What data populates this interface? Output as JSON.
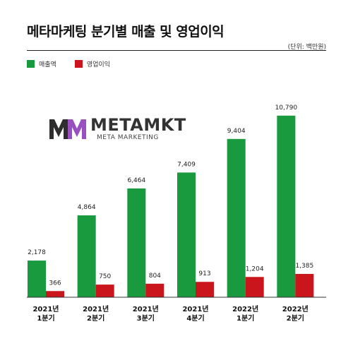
{
  "chart_data": {
    "type": "bar",
    "title": "메타마케팅 분기별 매출 및 영업이익",
    "unit_note": "(단위: 백만원)",
    "categories": [
      [
        "2021년",
        "1분기"
      ],
      [
        "2021년",
        "2분기"
      ],
      [
        "2021년",
        "3분기"
      ],
      [
        "2021년",
        "4분기"
      ],
      [
        "2022년",
        "1분기"
      ],
      [
        "2022년",
        "2분기"
      ]
    ],
    "series": [
      {
        "name": "매출액",
        "color": "#1a9a3f",
        "values": [
          2178,
          4864,
          6464,
          7409,
          9404,
          10790
        ],
        "labels": [
          "2,178",
          "4,864",
          "6,464",
          "7,409",
          "9,404",
          "10,790"
        ]
      },
      {
        "name": "영업이익",
        "color": "#c9151b",
        "values": [
          366,
          750,
          804,
          913,
          1204,
          1385
        ],
        "labels": [
          "366",
          "750",
          "804",
          "913",
          "1,204",
          "1,385"
        ]
      }
    ],
    "ylim": [
      0,
      11200
    ],
    "grid": false,
    "legend_position": "top-left"
  },
  "logo": {
    "name": "METAMKT",
    "tagline": "META MARKETING",
    "colors": [
      "#2e2e2e",
      "#9a4fc0"
    ]
  }
}
